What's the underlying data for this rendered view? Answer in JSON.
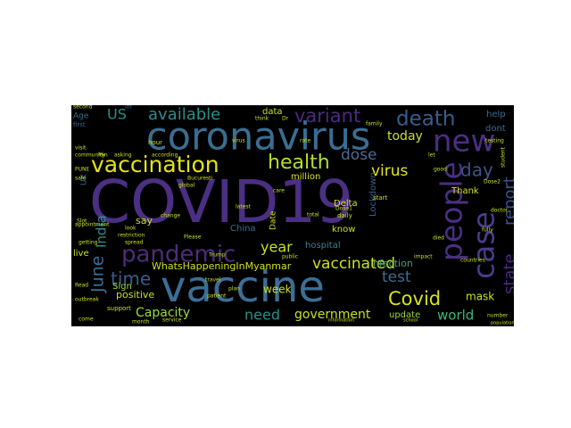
{
  "wordcloud": {
    "background": "#000000",
    "words": [
      {
        "text": "COVID19",
        "color": "#4b2f83"
      },
      {
        "text": "vaccine",
        "color": "#3b6f96"
      },
      {
        "text": "coronavirus",
        "color": "#3a6e92"
      },
      {
        "text": "people",
        "color": "#4b2f83"
      },
      {
        "text": "case",
        "color": "#4a3d8b"
      },
      {
        "text": "new",
        "color": "#4b2f83"
      },
      {
        "text": "vaccination",
        "color": "#e3e21a"
      },
      {
        "text": "pandemic",
        "color": "#4d2c7b"
      },
      {
        "text": "death",
        "color": "#3b5b8c"
      },
      {
        "text": "health",
        "color": "#b5de2b"
      },
      {
        "text": "variant",
        "color": "#4a2a82"
      },
      {
        "text": "available",
        "color": "#2a8f8a"
      },
      {
        "text": "Covid",
        "color": "#d8e219"
      },
      {
        "text": "vaccinated",
        "color": "#cde11d"
      },
      {
        "text": "time",
        "color": "#3a5c8b"
      },
      {
        "text": "day",
        "color": "#3b528b"
      },
      {
        "text": "report",
        "color": "#3b528b"
      },
      {
        "text": "state",
        "color": "#4a2b7e"
      },
      {
        "text": "dose",
        "color": "#4c6b96"
      },
      {
        "text": "virus",
        "color": "#e2e418"
      },
      {
        "text": "test",
        "color": "#3e6e8e"
      },
      {
        "text": "year",
        "color": "#c8e020"
      },
      {
        "text": "need",
        "color": "#2a8f8a"
      },
      {
        "text": "government",
        "color": "#c8e020"
      },
      {
        "text": "world",
        "color": "#38b977"
      },
      {
        "text": "June",
        "color": "#3a6e92"
      },
      {
        "text": "India",
        "color": "#2e8c89"
      },
      {
        "text": "Capacity",
        "color": "#9bd93c"
      },
      {
        "text": "US",
        "color": "#2a8f8a"
      },
      {
        "text": "today",
        "color": "#c8e020"
      },
      {
        "text": "update",
        "color": "#9bd93c"
      },
      {
        "text": "mask",
        "color": "#c8e020"
      },
      {
        "text": "WhatsHappeningInMyanmar",
        "color": "#d0e11c"
      },
      {
        "text": "week",
        "color": "#c8e020"
      },
      {
        "text": "positive",
        "color": "#c8e020"
      },
      {
        "text": "infection",
        "color": "#3f9f84"
      },
      {
        "text": "hospital",
        "color": "#3e7e8f"
      },
      {
        "text": "Lockdown",
        "color": "#3a5c8b"
      },
      {
        "text": "Delta",
        "color": "#d8e219"
      },
      {
        "text": "million",
        "color": "#d8e219"
      },
      {
        "text": "data",
        "color": "#c8e020"
      },
      {
        "text": "China",
        "color": "#3a6e92"
      },
      {
        "text": "Thank",
        "color": "#d8e219"
      },
      {
        "text": "know",
        "color": "#c8e020"
      },
      {
        "text": "Sign",
        "color": "#9bd93c"
      },
      {
        "text": "say",
        "color": "#c8e020"
      },
      {
        "text": "live",
        "color": "#c8e020"
      },
      {
        "text": "Date",
        "color": "#d8e219"
      },
      {
        "text": "help",
        "color": "#3a6e92"
      },
      {
        "text": "dont",
        "color": "#3a6e92"
      },
      {
        "text": "Age",
        "color": "#3a6e92"
      },
      {
        "text": "first",
        "color": "#3a6e92"
      },
      {
        "text": "second",
        "color": "#c8e020"
      },
      {
        "text": "lot",
        "color": "#3a6e92"
      },
      {
        "text": "UK",
        "color": "#3a6e92"
      },
      {
        "text": "Please",
        "color": "#c8e020"
      },
      {
        "text": "change",
        "color": "#c8e020"
      },
      {
        "text": "hour",
        "color": "#c8e020"
      },
      {
        "text": "total",
        "color": "#c8e020"
      },
      {
        "text": "daily",
        "color": "#c8e020"
      },
      {
        "text": "start",
        "color": "#c8e020"
      },
      {
        "text": "Trump",
        "color": "#c8e020"
      },
      {
        "text": "plan",
        "color": "#c8e020"
      },
      {
        "text": "support",
        "color": "#c8e020"
      },
      {
        "text": "travel",
        "color": "#c8e020"
      },
      {
        "text": "patient",
        "color": "#c8e020"
      },
      {
        "text": "service",
        "color": "#c8e020"
      },
      {
        "text": "number",
        "color": "#c8e020"
      },
      {
        "text": "died",
        "color": "#c8e020"
      },
      {
        "text": "safe",
        "color": "#c8e020"
      },
      {
        "text": "public",
        "color": "#c8e020"
      },
      {
        "text": "Dose2",
        "color": "#c8e020"
      },
      {
        "text": "Dose1",
        "color": "#c8e020"
      },
      {
        "text": "rate",
        "color": "#c8e020"
      },
      {
        "text": "spread",
        "color": "#c8e020"
      },
      {
        "text": "look",
        "color": "#c8e020"
      },
      {
        "text": "Read",
        "color": "#c8e020"
      },
      {
        "text": "getting",
        "color": "#c8e020"
      },
      {
        "text": "come",
        "color": "#c8e020"
      },
      {
        "text": "countries",
        "color": "#c8e020"
      },
      {
        "text": "latest",
        "color": "#c8e020"
      },
      {
        "text": "care",
        "color": "#c8e020"
      },
      {
        "text": "restriction",
        "color": "#c8e020"
      },
      {
        "text": "outbreak",
        "color": "#c8e020"
      },
      {
        "text": "visit",
        "color": "#c8e020"
      },
      {
        "text": "fully",
        "color": "#c8e020"
      },
      {
        "text": "doctor",
        "color": "#c8e020"
      },
      {
        "text": "impact",
        "color": "#c8e020"
      },
      {
        "text": "let",
        "color": "#c8e020"
      },
      {
        "text": "good",
        "color": "#c8e020"
      },
      {
        "text": "think",
        "color": "#c8e020"
      },
      {
        "text": "PUNE",
        "color": "#c8e020"
      },
      {
        "text": "Slot",
        "color": "#c8e020"
      },
      {
        "text": "appointment",
        "color": "#c8e020"
      },
      {
        "text": "testing",
        "color": "#c8e020"
      },
      {
        "text": "Dr",
        "color": "#c8e020"
      },
      {
        "text": "month",
        "color": "#c8e020"
      },
      {
        "text": "Min",
        "color": "#c8e020"
      },
      {
        "text": "asking",
        "color": "#c8e020"
      },
      {
        "text": "according",
        "color": "#c8e020"
      },
      {
        "text": "virus",
        "color": "#c8e020"
      },
      {
        "text": "Bucuresti",
        "color": "#c8e020"
      },
      {
        "text": "global",
        "color": "#c8e020"
      },
      {
        "text": "community",
        "color": "#c8e020"
      },
      {
        "text": "family",
        "color": "#c8e020"
      },
      {
        "text": "student",
        "color": "#c8e020"
      },
      {
        "text": "population",
        "color": "#c8e020"
      },
      {
        "text": "information",
        "color": "#c8e020"
      },
      {
        "text": "school",
        "color": "#c8e020"
      }
    ]
  }
}
